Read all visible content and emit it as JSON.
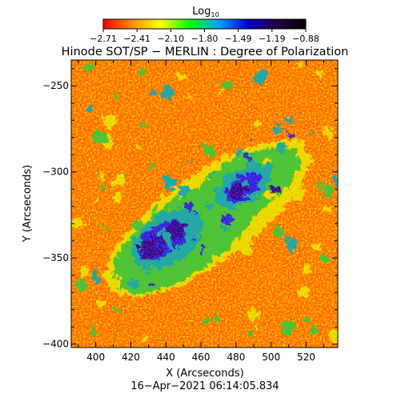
{
  "colorbar": {
    "label_main": "Log",
    "label_sub": "10",
    "ticks": [
      "−2.71",
      "−2.41",
      "−2.10",
      "−1.80",
      "−1.49",
      "−1.19",
      "−0.88"
    ],
    "colors": [
      "#ff0000",
      "#ff8c00",
      "#ffff00",
      "#00ff00",
      "#00a0ff",
      "#0000cc",
      "#220044",
      "#000000"
    ]
  },
  "title": "Hinode SOT/SP − MERLIN : Degree of Polarization",
  "x_axis": {
    "label": "X (Arcseconds)",
    "ticks": [
      "400",
      "420",
      "440",
      "460",
      "480",
      "500",
      "520"
    ],
    "tick_values": [
      400,
      420,
      440,
      460,
      480,
      500,
      520
    ],
    "range": [
      386,
      538
    ]
  },
  "y_axis": {
    "label": "Y (Arcseconds)",
    "ticks": [
      "−250",
      "−300",
      "−350",
      "−400"
    ],
    "tick_values": [
      -250,
      -300,
      -350,
      -400
    ],
    "range": [
      -402,
      -235
    ]
  },
  "timestamp": "16−Apr−2021 06:14:05.834",
  "map_colors": {
    "background": "#ff6a00",
    "orange": "#ff9a00",
    "yellow": "#e8e800",
    "green": "#30d040",
    "cyan": "#00b0c0",
    "blue": "#1a1aff",
    "deepblue": "#2200aa"
  }
}
